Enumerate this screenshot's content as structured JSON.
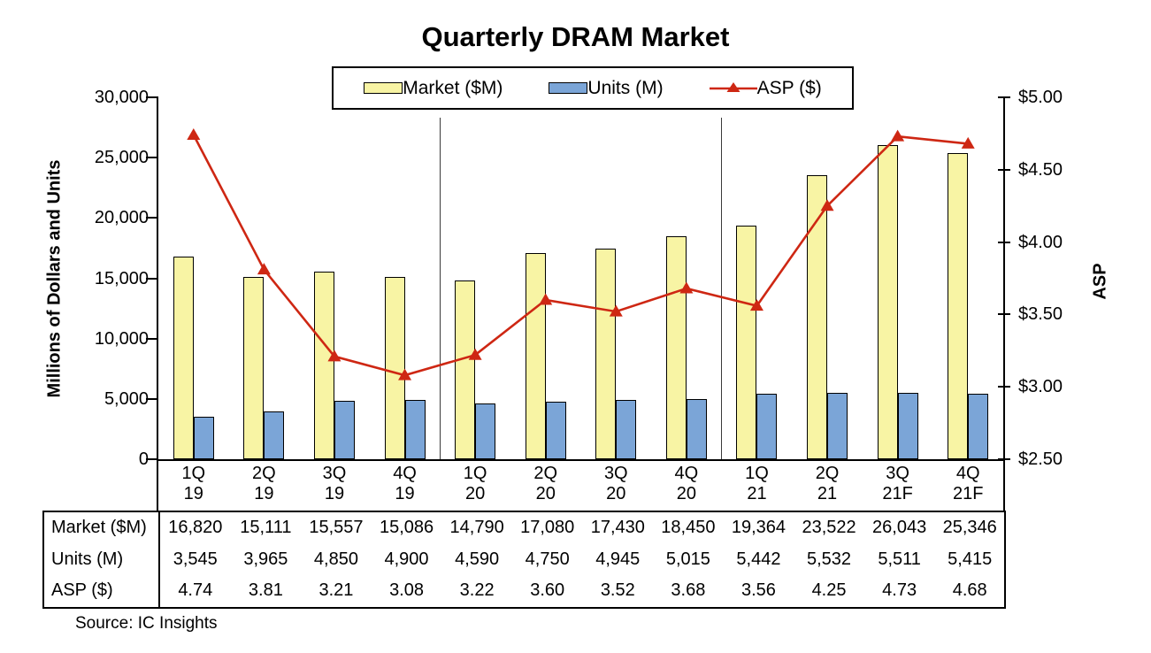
{
  "title": "Quarterly DRAM Market",
  "legend": {
    "market_label": "Market ($M)",
    "units_label": "Units (M)",
    "asp_label": "ASP ($)"
  },
  "left_axis_title": "Millions of Dollars and Units",
  "right_axis_title": "ASP",
  "source": "Source:  IC Insights",
  "colors": {
    "market_fill": "#F8F4A4",
    "units_fill": "#7BA5D7",
    "asp_line": "#CE2713",
    "axis_black": "#000000"
  },
  "chart_data": {
    "type": "bar+line combo",
    "title": "Quarterly DRAM Market",
    "categories": [
      "1Q 19",
      "2Q 19",
      "3Q 19",
      "4Q 19",
      "1Q 20",
      "2Q 20",
      "3Q 20",
      "4Q 20",
      "1Q 21",
      "2Q 21",
      "3Q 21F",
      "4Q 21F"
    ],
    "x_labels_line1": [
      "1Q",
      "2Q",
      "3Q",
      "4Q",
      "1Q",
      "2Q",
      "3Q",
      "4Q",
      "1Q",
      "2Q",
      "3Q",
      "4Q"
    ],
    "x_labels_line2": [
      "19",
      "19",
      "19",
      "19",
      "20",
      "20",
      "20",
      "20",
      "21",
      "21",
      "21F",
      "21F"
    ],
    "series": [
      {
        "name": "Market ($M)",
        "type": "bar",
        "axis": "left",
        "values": [
          16820,
          15111,
          15557,
          15086,
          14790,
          17080,
          17430,
          18450,
          19364,
          23522,
          26043,
          25346
        ]
      },
      {
        "name": "Units (M)",
        "type": "bar",
        "axis": "left",
        "values": [
          3545,
          3965,
          4850,
          4900,
          4590,
          4750,
          4945,
          5015,
          5442,
          5532,
          5511,
          5415
        ]
      },
      {
        "name": "ASP ($)",
        "type": "line",
        "axis": "right",
        "values": [
          4.74,
          3.81,
          3.21,
          3.08,
          3.22,
          3.6,
          3.52,
          3.68,
          3.56,
          4.25,
          4.73,
          4.68
        ]
      }
    ],
    "left_axis": {
      "label": "Millions of Dollars and Units",
      "min": 0,
      "max": 30000,
      "tick_labels": [
        "0",
        "5,000",
        "10,000",
        "15,000",
        "20,000",
        "25,000",
        "30,000"
      ]
    },
    "right_axis": {
      "label": "ASP",
      "min": 2.5,
      "max": 5.0,
      "tick_labels": [
        "$2.50",
        "$3.00",
        "$3.50",
        "$4.00",
        "$4.50",
        "$5.00"
      ]
    },
    "year_separators_before_group": [
      4,
      8
    ],
    "grid": "off",
    "legend_position": "top-center"
  },
  "table": {
    "row_labels": [
      "Market ($M)",
      "Units (M)",
      "ASP ($)"
    ],
    "rows": [
      [
        "16,820",
        "15,111",
        "15,557",
        "15,086",
        "14,790",
        "17,080",
        "17,430",
        "18,450",
        "19,364",
        "23,522",
        "26,043",
        "25,346"
      ],
      [
        "3,545",
        "3,965",
        "4,850",
        "4,900",
        "4,590",
        "4,750",
        "4,945",
        "5,015",
        "5,442",
        "5,532",
        "5,511",
        "5,415"
      ],
      [
        "4.74",
        "3.81",
        "3.21",
        "3.08",
        "3.22",
        "3.60",
        "3.52",
        "3.68",
        "3.56",
        "4.25",
        "4.73",
        "4.68"
      ]
    ]
  }
}
